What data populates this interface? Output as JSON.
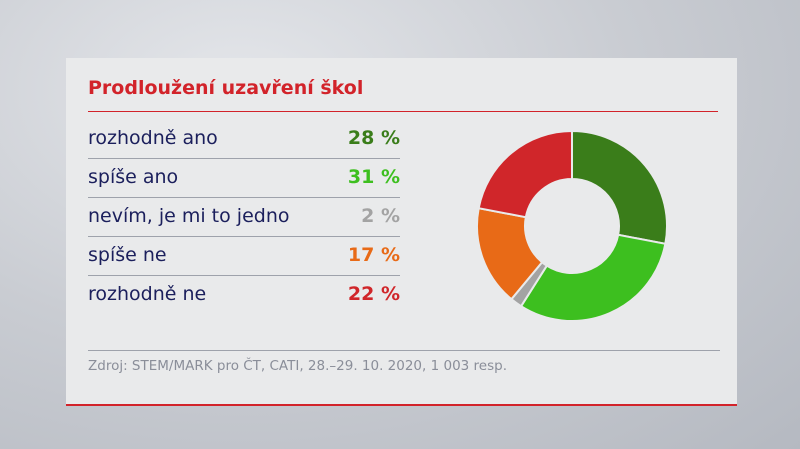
{
  "title": "Prodloužení uzavření škol",
  "source": "Zdroj: STEM/MARK pro ČT, CATI, 28.–29. 10. 2020, 1 003 resp.",
  "chart_data": {
    "type": "pie",
    "donut": true,
    "categories": [
      "rozhodně ano",
      "spíše ano",
      "nevím, je mi to jedno",
      "spíše ne",
      "rozhodně ne"
    ],
    "values": [
      28,
      31,
      2,
      17,
      22
    ],
    "value_labels": [
      "28 %",
      "31 %",
      "2 %",
      "17 %",
      "22 %"
    ],
    "colors": [
      "#3a7d1a",
      "#3dbf1f",
      "#a3a3a3",
      "#e86a17",
      "#d0262a"
    ],
    "start": "top",
    "direction": "clockwise"
  }
}
